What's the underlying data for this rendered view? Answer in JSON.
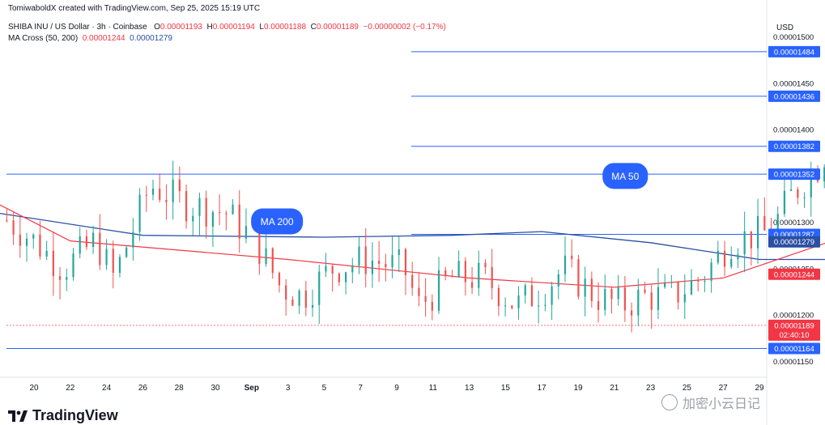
{
  "header": {
    "credit": "TomiwaboldX created with TradingView.com, Sep 25, 2025 15:19 UTC",
    "symbol": "SHIBA INU / US Dollar · 3h · Coinbase",
    "open_label": "O",
    "open": "0.00001193",
    "high_label": "H",
    "high": "0.00001194",
    "low_label": "L",
    "low": "0.00001188",
    "close_label": "C",
    "close": "0.00001189",
    "change": "−0.00000002 (−0.17%)",
    "indicator": "MA Cross (50, 200)",
    "ma50_value": "0.00001244",
    "ma200_value": "0.00001279",
    "currency": "USD"
  },
  "brand": {
    "name": "TradingView"
  },
  "watermark": {
    "text": "加密小云日记"
  },
  "colors": {
    "up": "#26a69a",
    "down": "#ef5350",
    "ma50": "#f23645",
    "ma200": "#2a4fa3",
    "level": "#2962ff",
    "price": "#f23645"
  },
  "chart_data": {
    "type": "candlestick",
    "x_ticks": [
      "20",
      "22",
      "24",
      "26",
      "28",
      "30",
      "Sep",
      "3",
      "5",
      "7",
      "9",
      "11",
      "13",
      "15",
      "17",
      "19",
      "21",
      "23",
      "25",
      "27",
      "29"
    ],
    "y_ticks": [
      "0.00001150",
      "0.00001200",
      "0.00001250",
      "0.00001300",
      "0.00001350",
      "0.00001400",
      "0.00001450",
      "0.00001500"
    ],
    "ylim": [
      1.14e-05,
      1.5e-05
    ],
    "horizontal_levels": [
      {
        "value": "0.00001484",
        "color": "#2962ff"
      },
      {
        "value": "0.00001436",
        "color": "#2962ff"
      },
      {
        "value": "0.00001382",
        "color": "#2962ff"
      },
      {
        "value": "0.00001352",
        "color": "#2962ff"
      },
      {
        "value": "0.00001287",
        "color": "#2962ff"
      },
      {
        "value": "0.00001164",
        "color": "#2962ff"
      }
    ],
    "price_labels": [
      {
        "value": "0.00001279",
        "color": "#2a4fa3"
      },
      {
        "value": "0.00001244",
        "color": "#f23645"
      },
      {
        "value": "0.00001189",
        "color": "#f23645",
        "countdown": "02:40:10"
      }
    ],
    "annotations": [
      {
        "text": "MA 200",
        "x_date": "Sep 1",
        "y": 1.3e-05
      },
      {
        "text": "MA 50",
        "x_date": "Sep 19",
        "y": 1.35e-05
      }
    ],
    "ma200": [
      [
        -1,
        1.31e-05
      ],
      [
        3,
        1.286e-05
      ],
      [
        8,
        1.284e-05
      ],
      [
        11.5,
        1.286e-05
      ],
      [
        14,
        1.29e-05
      ],
      [
        17,
        1.278e-05
      ],
      [
        20,
        1.26e-05
      ],
      [
        24,
        1.26e-05
      ],
      [
        27,
        1.28e-05
      ],
      [
        31,
        1.29e-05
      ],
      [
        34,
        1.286e-05
      ],
      [
        36,
        1.281e-05
      ]
    ],
    "ma50": [
      [
        -1,
        1.32e-05
      ],
      [
        1,
        1.28e-05
      ],
      [
        4,
        1.27e-05
      ],
      [
        7,
        1.26e-05
      ],
      [
        12,
        1.24e-05
      ],
      [
        16,
        1.23e-05
      ],
      [
        19,
        1.24e-05
      ],
      [
        22,
        1.28e-05
      ],
      [
        23,
        1.32e-05
      ],
      [
        25,
        1.34e-05
      ],
      [
        28,
        1.345e-05
      ],
      [
        31,
        1.3e-05
      ],
      [
        34,
        1.26e-05
      ],
      [
        36,
        1.24e-05
      ]
    ],
    "ohlc_path": [
      [
        -1,
        1.31e-05
      ],
      [
        0,
        1.28e-05
      ],
      [
        0.8,
        1.25e-05
      ],
      [
        1.7,
        1.28e-05
      ],
      [
        2.2,
        1.24e-05
      ],
      [
        3.2,
        1.34e-05
      ],
      [
        4.2,
        1.32e-05
      ],
      [
        5.3,
        1.31e-05
      ],
      [
        6.1,
        1.28e-05
      ],
      [
        6.8,
        1.23e-05
      ],
      [
        7.4,
        1.22e-05
      ],
      [
        8.2,
        1.25e-05
      ],
      [
        9.2,
        1.26e-05
      ],
      [
        10.2,
        1.25e-05
      ],
      [
        10.6,
        1.21e-05
      ],
      [
        11.5,
        1.24e-05
      ],
      [
        12.4,
        1.24e-05
      ],
      [
        13.3,
        1.21e-05
      ],
      [
        14.1,
        1.23e-05
      ],
      [
        14.6,
        1.25e-05
      ],
      [
        15.5,
        1.22e-05
      ],
      [
        16.2,
        1.21e-05
      ],
      [
        16.8,
        1.22e-05
      ],
      [
        17.6,
        1.22e-05
      ],
      [
        18.4,
        1.24e-05
      ],
      [
        19.2,
        1.28e-05
      ],
      [
        20.3,
        1.29e-05
      ],
      [
        20.9,
        1.33e-05
      ],
      [
        21.6,
        1.36e-05
      ],
      [
        22.3,
        1.41e-05
      ],
      [
        22.9,
        1.48e-05
      ],
      [
        23.5,
        1.43e-05
      ],
      [
        24.3,
        1.38e-05
      ],
      [
        24.9,
        1.38e-05
      ],
      [
        25.6,
        1.31e-05
      ],
      [
        26.3,
        1.31e-05
      ],
      [
        27.2,
        1.3e-05
      ],
      [
        27.8,
        1.35e-05
      ],
      [
        28.7,
        1.33e-05
      ],
      [
        29.4,
        1.29e-05
      ],
      [
        30.2,
        1.3e-05
      ],
      [
        31.2,
        1.29e-05
      ],
      [
        31.5,
        1.26e-05
      ],
      [
        32.1,
        1.2e-05
      ],
      [
        32.9,
        1.21e-05
      ],
      [
        33.7,
        1.22e-05
      ],
      [
        34.3,
        1.24e-05
      ],
      [
        35.1,
        1.2e-05
      ],
      [
        35.9,
        1.19e-05
      ]
    ]
  }
}
